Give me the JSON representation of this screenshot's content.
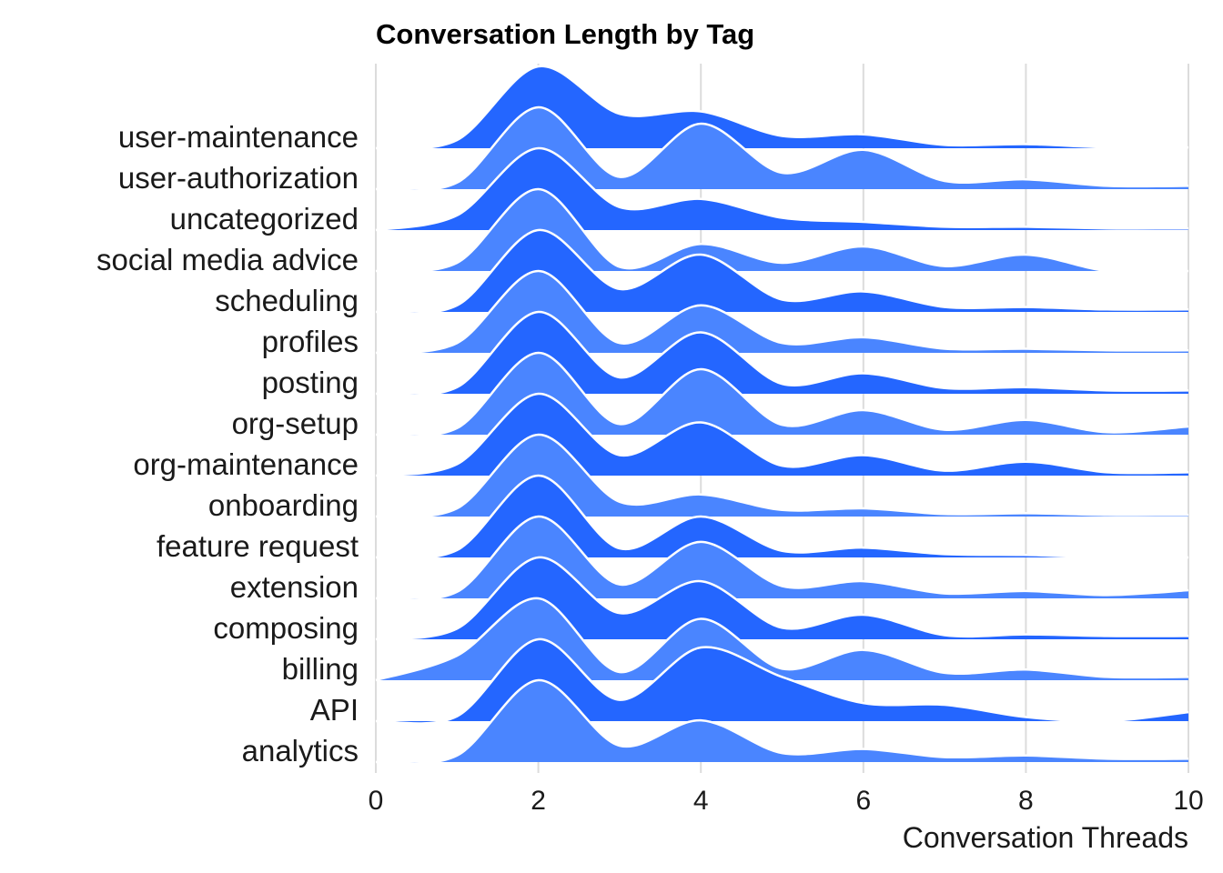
{
  "chart_data": {
    "type": "ridgeline",
    "title": "Conversation Length by Tag",
    "xlabel": "Conversation Threads",
    "ylabel": "",
    "xlim": [
      0,
      10
    ],
    "x_ticks": [
      "0",
      "2",
      "4",
      "6",
      "8",
      "10"
    ],
    "grid": "vertical",
    "colors": [
      "#2466ff",
      "#4a85ff"
    ],
    "outline_color": "#ffffff",
    "x": [
      0,
      1,
      2,
      3,
      4,
      5,
      6,
      7,
      8,
      9,
      10
    ],
    "series": [
      {
        "name": "user-maintenance",
        "values": [
          0.0,
          0.1,
          1.0,
          0.42,
          0.45,
          0.15,
          0.17,
          0.04,
          0.05,
          0.01,
          0.01
        ]
      },
      {
        "name": "user-authorization",
        "values": [
          0.0,
          0.08,
          1.0,
          0.15,
          0.8,
          0.2,
          0.48,
          0.1,
          0.12,
          0.04,
          0.04
        ]
      },
      {
        "name": "uncategorized",
        "values": [
          0.0,
          0.18,
          1.0,
          0.28,
          0.38,
          0.15,
          0.1,
          0.04,
          0.04,
          0.02,
          0.02
        ]
      },
      {
        "name": "social media advice",
        "values": [
          0.0,
          0.1,
          1.0,
          0.05,
          0.33,
          0.1,
          0.3,
          0.06,
          0.2,
          0.0,
          0.0
        ]
      },
      {
        "name": "scheduling",
        "values": [
          0.0,
          0.08,
          1.0,
          0.28,
          0.7,
          0.15,
          0.25,
          0.06,
          0.06,
          0.03,
          0.03
        ]
      },
      {
        "name": "profiles",
        "values": [
          0.0,
          0.12,
          1.0,
          0.12,
          0.58,
          0.12,
          0.19,
          0.05,
          0.05,
          0.03,
          0.03
        ]
      },
      {
        "name": "posting",
        "values": [
          0.0,
          0.08,
          1.0,
          0.2,
          0.75,
          0.12,
          0.25,
          0.07,
          0.08,
          0.04,
          0.04
        ]
      },
      {
        "name": "org-setup",
        "values": [
          0.0,
          0.08,
          1.0,
          0.13,
          0.8,
          0.12,
          0.3,
          0.06,
          0.18,
          0.03,
          0.1
        ]
      },
      {
        "name": "org-maintenance",
        "values": [
          0.0,
          0.14,
          1.0,
          0.25,
          0.65,
          0.12,
          0.25,
          0.06,
          0.17,
          0.04,
          0.04
        ]
      },
      {
        "name": "onboarding",
        "values": [
          0.0,
          0.1,
          1.0,
          0.18,
          0.27,
          0.08,
          0.1,
          0.03,
          0.04,
          0.02,
          0.02
        ]
      },
      {
        "name": "feature request",
        "values": [
          0.0,
          0.09,
          1.0,
          0.11,
          0.5,
          0.08,
          0.12,
          0.04,
          0.03,
          0.0,
          0.0
        ]
      },
      {
        "name": "extension",
        "values": [
          0.0,
          0.08,
          1.0,
          0.17,
          0.69,
          0.15,
          0.21,
          0.06,
          0.09,
          0.04,
          0.1
        ]
      },
      {
        "name": "composing",
        "values": [
          0.0,
          0.13,
          1.0,
          0.32,
          0.71,
          0.14,
          0.3,
          0.05,
          0.06,
          0.04,
          0.04
        ]
      },
      {
        "name": "billing",
        "values": [
          0.0,
          0.3,
          1.0,
          0.1,
          0.75,
          0.14,
          0.37,
          0.09,
          0.13,
          0.04,
          0.04
        ]
      },
      {
        "name": "API",
        "values": [
          0.0,
          0.06,
          1.0,
          0.26,
          0.9,
          0.54,
          0.22,
          0.2,
          0.05,
          0.0,
          0.11
        ]
      },
      {
        "name": "analytics",
        "values": [
          0.0,
          0.08,
          1.0,
          0.2,
          0.51,
          0.11,
          0.16,
          0.06,
          0.08,
          0.04,
          0.04
        ]
      }
    ]
  }
}
